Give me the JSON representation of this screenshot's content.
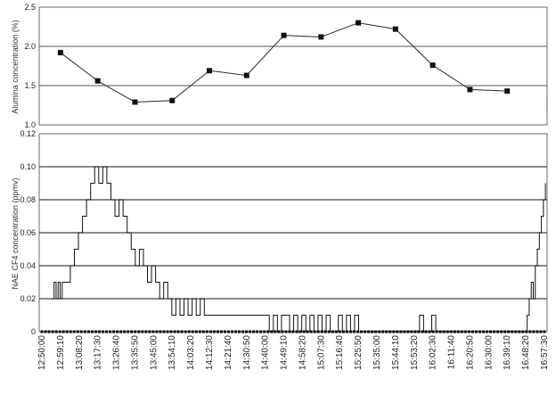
{
  "chart_data": [
    {
      "type": "line",
      "panel": "top",
      "ylabel": "Alumina concentration (%)",
      "ylim": [
        1.0,
        2.5
      ],
      "y_ticks": [
        "1.0",
        "1.5",
        "2.0",
        "2.5"
      ],
      "gridlines": [
        1.5,
        2.0
      ],
      "markers": "square",
      "series": [
        {
          "x": [
            "12:59:10",
            "13:17:30",
            "13:35:50",
            "13:54:10",
            "14:12:30",
            "14:30:50",
            "14:49:10",
            "15:07:30",
            "15:25:50",
            "15:44:10",
            "16:02:30",
            "16:20:50",
            "16:39:10"
          ],
          "y": [
            1.92,
            1.56,
            1.29,
            1.31,
            1.69,
            1.63,
            2.14,
            2.12,
            2.3,
            2.22,
            1.76,
            1.45,
            1.43
          ]
        }
      ]
    },
    {
      "type": "line",
      "panel": "bottom",
      "ylabel": "NAE CF4 concentration (ppmv)",
      "ylim": [
        0,
        0.12
      ],
      "y_ticks": [
        "0",
        "0.02",
        "0.04",
        "0.06",
        "0.08",
        "0.10",
        "0.12"
      ],
      "gridlines": [
        0.02,
        0.04,
        0.06,
        0.08,
        0.1
      ],
      "x_ticks": [
        "12:50:00",
        "12:59:10",
        "13:08:20",
        "13:17:30",
        "13:26:40",
        "13:35:50",
        "13:45:00",
        "13:54:10",
        "14:03:20",
        "14:12:30",
        "14:21:40",
        "14:30:50",
        "14:40:00",
        "14:49:10",
        "14:58:20",
        "15:07:30",
        "15:16:40",
        "15:25:50",
        "15:35:00",
        "15:44:10",
        "15:53:20",
        "16:02:30",
        "16:11:40",
        "16:20:50",
        "16:30:00",
        "16:39:10",
        "16:48:20",
        "16:57:30"
      ],
      "series": [
        {
          "x_minutes": [
            5,
            6,
            7,
            8,
            9,
            10,
            12,
            14,
            16,
            18,
            20,
            22,
            24,
            26,
            28,
            30,
            32,
            34,
            36,
            38,
            40,
            42,
            44,
            46,
            48,
            50,
            52,
            54,
            56,
            58,
            60,
            62,
            64,
            66,
            68,
            70,
            72,
            74,
            76,
            78,
            80,
            82,
            84,
            86,
            88,
            90,
            92,
            94,
            96,
            98,
            100,
            102,
            104,
            106,
            108,
            110,
            112,
            114,
            116,
            118,
            120,
            122,
            124,
            126,
            128,
            130,
            132,
            134,
            136,
            138,
            140,
            142,
            144,
            146,
            148,
            150,
            152,
            154,
            156,
            158,
            160,
            162,
            164,
            166,
            168,
            170,
            172,
            174,
            176,
            178,
            180,
            182,
            184,
            186,
            188,
            190,
            192,
            194,
            196,
            198,
            200,
            202,
            204,
            206,
            208,
            210,
            212,
            214,
            216,
            218,
            220,
            222,
            224,
            226,
            228,
            230,
            232,
            234,
            236,
            238,
            239,
            240,
            241,
            242,
            243,
            244,
            245,
            246,
            247,
            248
          ],
          "y": [
            0.02,
            0.03,
            0.02,
            0.03,
            0.02,
            0.03,
            0.03,
            0.04,
            0.05,
            0.06,
            0.07,
            0.08,
            0.09,
            0.1,
            0.09,
            0.1,
            0.09,
            0.08,
            0.07,
            0.08,
            0.07,
            0.06,
            0.05,
            0.04,
            0.05,
            0.04,
            0.03,
            0.04,
            0.03,
            0.02,
            0.03,
            0.02,
            0.01,
            0.02,
            0.01,
            0.02,
            0.01,
            0.02,
            0.01,
            0.02,
            0.01,
            0.01,
            0.01,
            0.01,
            0.01,
            0.01,
            0.01,
            0.01,
            0.01,
            0.01,
            0.01,
            0.01,
            0.01,
            0.01,
            0.01,
            0.01,
            0.0,
            0.01,
            0.0,
            0.01,
            0.01,
            0.0,
            0.01,
            0.0,
            0.01,
            0.0,
            0.01,
            0.0,
            0.01,
            0.0,
            0.01,
            0.0,
            0.0,
            0.01,
            0.0,
            0.01,
            0.0,
            0.01,
            0.0,
            0.0,
            0.0,
            0.0,
            0.0,
            0.0,
            0.0,
            0.0,
            0.0,
            0.0,
            0.0,
            0.0,
            0.0,
            0.0,
            0.0,
            0.01,
            0.0,
            0.0,
            0.01,
            0.0,
            0.0,
            0.0,
            0.0,
            0.0,
            0.0,
            0.0,
            0.0,
            0.0,
            0.0,
            0.0,
            0.0,
            0.0,
            0.0,
            0.0,
            0.0,
            0.0,
            0.0,
            0.0,
            0.0,
            0.0,
            0.0,
            0.0,
            0.01,
            0.02,
            0.03,
            0.02,
            0.04,
            0.05,
            0.06,
            0.07,
            0.08,
            0.09
          ]
        }
      ]
    }
  ]
}
